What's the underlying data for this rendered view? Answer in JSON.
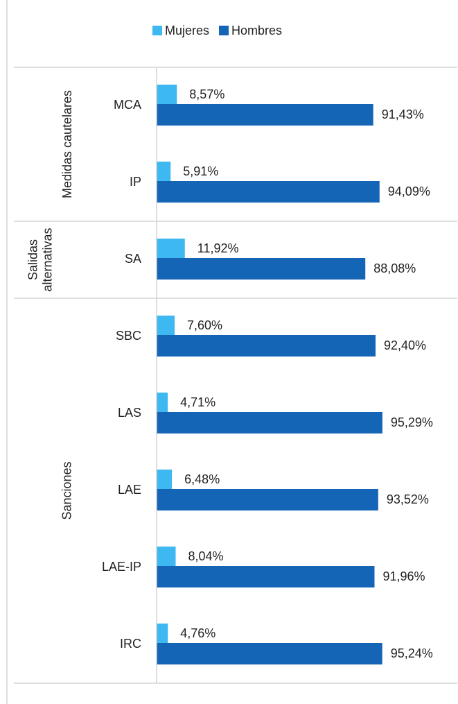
{
  "chart_data": {
    "type": "bar",
    "orientation": "horizontal",
    "groups": [
      {
        "label": "Medidas cautelares",
        "categories": [
          "MCA",
          "IP"
        ]
      },
      {
        "label": "Salidas alternativas",
        "categories": [
          "SA"
        ]
      },
      {
        "label": "Sanciones",
        "categories": [
          "SBC",
          "LAS",
          "LAE",
          "LAE-IP",
          "IRC"
        ]
      }
    ],
    "series": [
      {
        "name": "Mujeres",
        "color": "#3db8f0",
        "values": [
          8.57,
          5.91,
          11.92,
          7.6,
          4.71,
          6.48,
          8.04,
          4.76
        ],
        "value_labels": [
          "8,57%",
          "5,91%",
          "11,92%",
          "7,60%",
          "4,71%",
          "6,48%",
          "8,04%",
          "4,76%"
        ]
      },
      {
        "name": "Hombres",
        "color": "#1565b7",
        "values": [
          91.43,
          94.09,
          88.08,
          92.4,
          95.29,
          93.52,
          91.96,
          95.24
        ],
        "value_labels": [
          "91,43%",
          "94,09%",
          "88,08%",
          "92,40%",
          "95,29%",
          "93,52%",
          "91,96%",
          "95,24%"
        ]
      }
    ],
    "xlim": [
      0,
      100
    ],
    "legend": "top"
  }
}
